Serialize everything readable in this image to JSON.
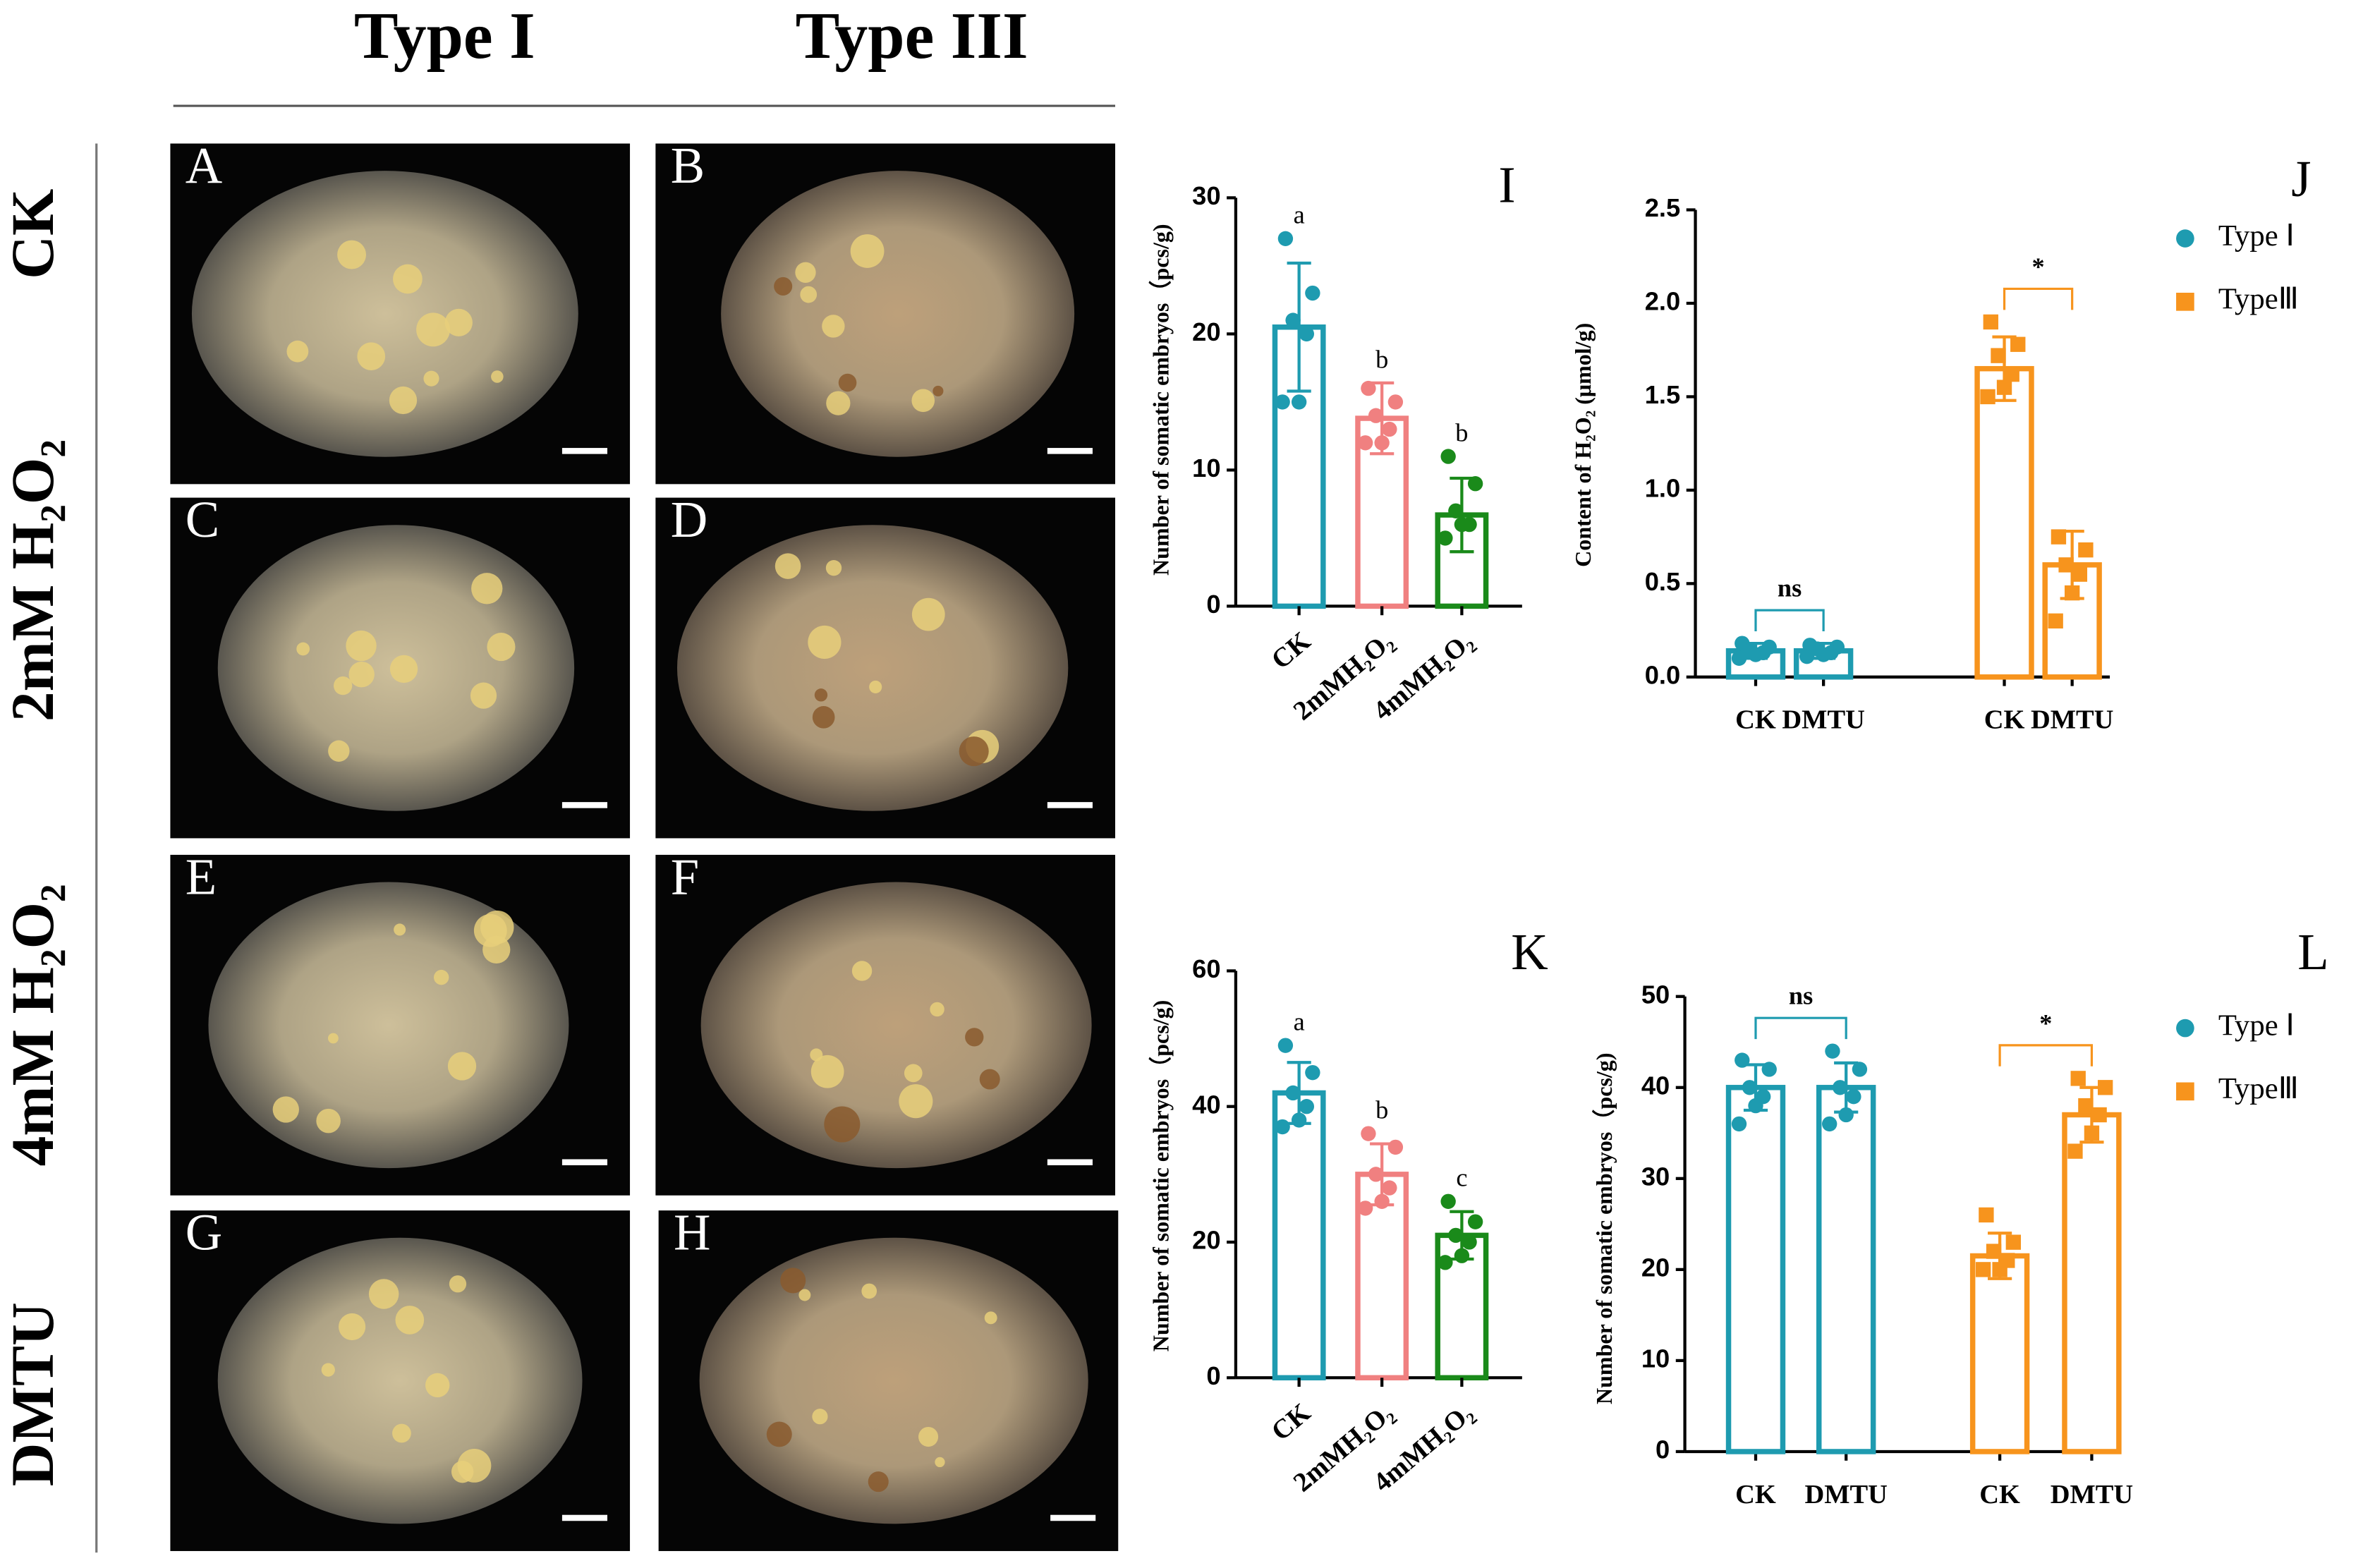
{
  "column_headers": [
    "Type I",
    "Type III"
  ],
  "row_labels": [
    "CK",
    "2mM H₂O₂",
    "4mM H₂O₂",
    "DMTU"
  ],
  "panels": [
    "A",
    "B",
    "C",
    "D",
    "E",
    "F",
    "G",
    "H"
  ],
  "chart_data": [
    {
      "type": "bar",
      "panel_label": "I",
      "y_label": "Number of somatic embryos（pcs/g)",
      "categories": [
        "CK",
        "2mMH₂O₂",
        "4mMH₂O₂"
      ],
      "values": [
        20.5,
        13.8,
        6.7
      ],
      "errors": [
        4.7,
        2.6,
        2.7
      ],
      "colors": [
        "#1e9bb0",
        "#f08080",
        "#1a8a1a"
      ],
      "letters": [
        "a",
        "b",
        "b"
      ],
      "points": [
        [
          27,
          23,
          21,
          20,
          15,
          15
        ],
        [
          16,
          15,
          14,
          13,
          12,
          12
        ],
        [
          11,
          9,
          7,
          6,
          6,
          5
        ]
      ],
      "ylim": [
        0,
        30
      ],
      "yticks": [
        0,
        10,
        20,
        30
      ]
    },
    {
      "type": "grouped_bar",
      "panel_label": "J",
      "y_label": "Content of H₂O₂ (μmol/g)",
      "categories": [
        "CK",
        "DMTU",
        "CK",
        "DMTU"
      ],
      "series": [
        {
          "name": "Type Ⅰ",
          "color": "#1e9bb0",
          "marker": "circle",
          "values": [
            0.14,
            0.14,
            null,
            null
          ],
          "errors": [
            0.04,
            0.04,
            null,
            null
          ],
          "points": [
            [
              0.18,
              0.16,
              0.14,
              0.13,
              0.12,
              0.1
            ],
            [
              0.17,
              0.16,
              0.15,
              0.13,
              0.12,
              0.11
            ],
            [],
            []
          ]
        },
        {
          "name": "TypeⅢ",
          "color": "#f7941d",
          "marker": "square",
          "values": [
            null,
            null,
            1.65,
            0.6
          ],
          "errors": [
            null,
            null,
            0.17,
            0.18
          ],
          "points": [
            [],
            [],
            [
              1.9,
              1.78,
              1.72,
              1.62,
              1.55,
              1.5
            ],
            [
              0.75,
              0.68,
              0.6,
              0.55,
              0.45,
              0.3
            ]
          ]
        }
      ],
      "annotations": [
        "ns",
        "*"
      ],
      "ylim": [
        0,
        2.5
      ],
      "yticks": [
        {
          "value": 0,
          "label": "0.0"
        },
        0.5,
        {
          "value": 1,
          "label": "1.0"
        },
        1.5,
        {
          "value": 2,
          "label": "2.0"
        },
        2.5
      ]
    },
    {
      "type": "bar",
      "panel_label": "K",
      "y_label": "Number of somatic embryos（pcs/g)",
      "categories": [
        "CK",
        "2mMH₂O₂",
        "4mMH₂O₂"
      ],
      "values": [
        42,
        30,
        21
      ],
      "errors": [
        4.5,
        4.5,
        3.5
      ],
      "colors": [
        "#1e9bb0",
        "#f08080",
        "#1a8a1a"
      ],
      "letters": [
        "a",
        "b",
        "c"
      ],
      "points": [
        [
          49,
          45,
          42,
          40,
          38,
          37
        ],
        [
          36,
          34,
          30,
          28,
          26,
          25
        ],
        [
          26,
          23,
          21,
          20,
          18,
          17
        ]
      ],
      "ylim": [
        0,
        60
      ],
      "yticks": [
        0,
        20,
        40,
        60
      ]
    },
    {
      "type": "grouped_bar",
      "panel_label": "L",
      "y_label": "Number of somatic embryos（pcs/g)",
      "categories": [
        "CK",
        "DMTU",
        "CK",
        "DMTU"
      ],
      "series": [
        {
          "name": "Type Ⅰ",
          "color": "#1e9bb0",
          "marker": "circle",
          "values": [
            40,
            40,
            null,
            null
          ],
          "errors": [
            2.5,
            2.7,
            null,
            null
          ],
          "points": [
            [
              43,
              42,
              40,
              39,
              38,
              36
            ],
            [
              44,
              42,
              40,
              39,
              37,
              36
            ],
            [],
            []
          ]
        },
        {
          "name": "TypeⅢ",
          "color": "#f7941d",
          "marker": "square",
          "values": [
            null,
            null,
            21.5,
            37
          ],
          "errors": [
            null,
            null,
            2.5,
            3
          ],
          "points": [
            [],
            [],
            [
              26,
              23,
              22,
              21,
              20,
              20
            ],
            [
              41,
              40,
              38,
              37,
              35,
              33
            ]
          ]
        }
      ],
      "annotations": [
        "ns",
        "*"
      ],
      "ylim": [
        0,
        50
      ],
      "yticks": [
        0,
        10,
        20,
        30,
        40,
        50
      ]
    }
  ]
}
